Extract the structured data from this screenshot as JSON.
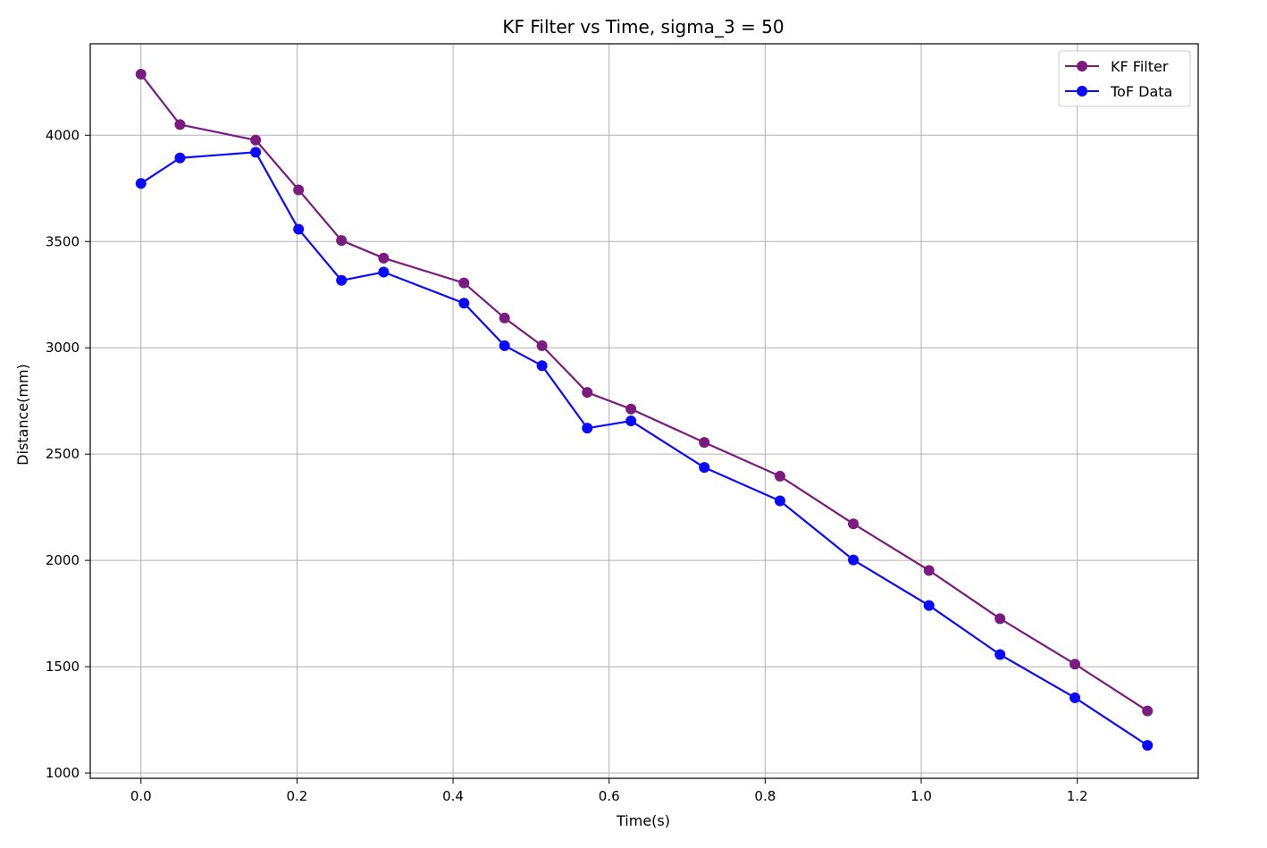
{
  "chart_data": {
    "type": "line",
    "title": "KF Filter vs Time, sigma_3 = 50",
    "xlabel": "Time(s)",
    "ylabel": "Distance(mm)",
    "xlim": [
      -0.065,
      1.355
    ],
    "ylim": [
      975,
      4430
    ],
    "xticks": [
      0.0,
      0.2,
      0.4,
      0.6,
      0.8,
      1.0,
      1.2
    ],
    "xtick_labels": [
      "0.0",
      "0.2",
      "0.4",
      "0.6",
      "0.8",
      "1.0",
      "1.2"
    ],
    "yticks": [
      1000,
      1500,
      2000,
      2500,
      3000,
      3500,
      4000
    ],
    "ytick_labels": [
      "1000",
      "1500",
      "2000",
      "2500",
      "3000",
      "3500",
      "4000"
    ],
    "grid": true,
    "legend_position": "top-right",
    "series": [
      {
        "name": "KF Filter",
        "color": "#7b1a7f",
        "marker": "circle",
        "x": [
          0.0,
          0.05,
          0.147,
          0.202,
          0.257,
          0.311,
          0.414,
          0.466,
          0.514,
          0.572,
          0.628,
          0.722,
          0.819,
          0.913,
          1.01,
          1.101,
          1.197,
          1.29
        ],
        "values": [
          4287,
          4050,
          3977,
          3743,
          3505,
          3422,
          3305,
          3140,
          3010,
          2790,
          2712,
          2555,
          2396,
          2172,
          1953,
          1726,
          1512,
          1292
        ]
      },
      {
        "name": "ToF Data",
        "color": "#0a0aff",
        "marker": "circle",
        "x": [
          0.0,
          0.05,
          0.147,
          0.202,
          0.257,
          0.311,
          0.414,
          0.466,
          0.514,
          0.572,
          0.628,
          0.722,
          0.819,
          0.913,
          1.01,
          1.101,
          1.197,
          1.29
        ],
        "values": [
          3773,
          3893,
          3920,
          3558,
          3317,
          3356,
          3210,
          3010,
          2916,
          2622,
          2656,
          2437,
          2280,
          2002,
          1788,
          1557,
          1354,
          1130
        ]
      }
    ]
  }
}
